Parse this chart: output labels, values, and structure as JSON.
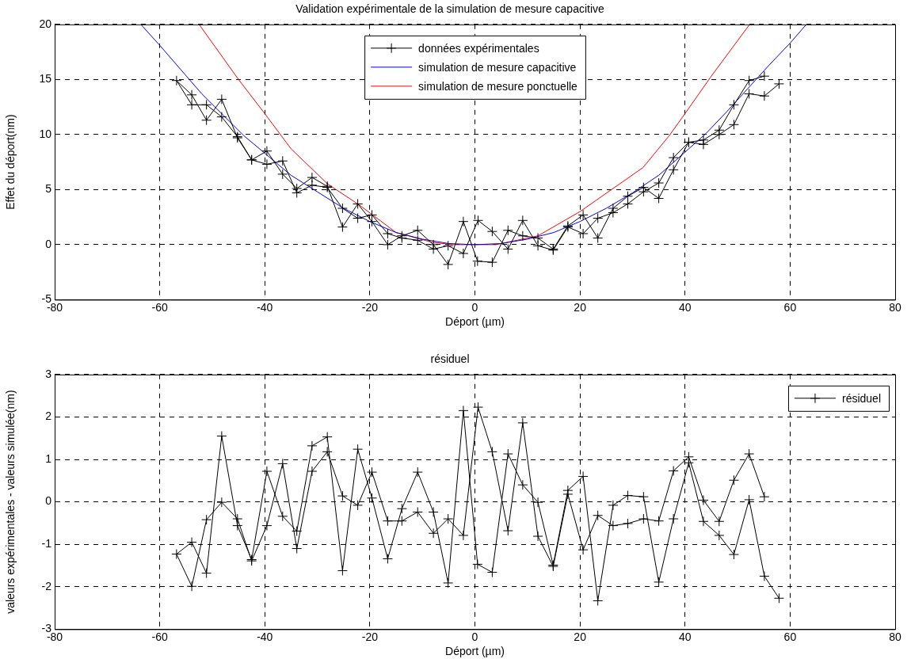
{
  "chart_data": [
    {
      "type": "line",
      "title": "Validation expérimentale de la simulation de mesure capacitive",
      "xlabel": "Déport (µm)",
      "ylabel": "Effet du déport(nm)",
      "xlim": [
        -80,
        80
      ],
      "xticks": [
        -80,
        -60,
        -40,
        -20,
        0,
        20,
        40,
        60,
        80
      ],
      "ylim": [
        -5,
        20
      ],
      "yticks": [
        -5,
        0,
        5,
        10,
        15,
        20
      ],
      "grid": true,
      "legend": "top",
      "marker": "cross",
      "line_style": "solid",
      "series": [
        {
          "name": "données expérimentales",
          "color": "#000000",
          "x": [
            55.1,
            52.2,
            49.3,
            46.5,
            43.5,
            40.7,
            37.8,
            35.0,
            32.1,
            29.1,
            26.3,
            23.4,
            20.6,
            17.7,
            14.9,
            12.0,
            9.1,
            6.3,
            3.3,
            0.6,
            -2.2,
            -5.1,
            -7.9,
            -10.9,
            -13.9,
            -16.6,
            -19.6,
            -22.3,
            -25.2,
            -28.1,
            -31.0,
            -33.9,
            -36.6,
            -39.6,
            -42.5,
            -45.2,
            -48.2,
            -51.1,
            -53.9,
            -56.8,
            -53.9,
            -51.1,
            -48.2,
            -45.2,
            -42.5,
            -39.6,
            -36.6,
            -33.9,
            -31.0,
            -28.1,
            -25.2,
            -22.3,
            -19.6,
            -16.6,
            -13.9,
            -10.9,
            -7.9,
            -5.1,
            -2.2,
            0.5,
            3.3,
            6.3,
            9.1,
            12.0,
            14.9,
            17.7,
            20.6,
            23.4,
            26.3,
            29.1,
            32.1,
            35.0,
            37.8,
            40.7,
            43.5,
            46.5,
            49.3,
            52.2,
            55.1,
            57.9
          ],
          "values": [
            15.3,
            14.9,
            12.7,
            10.4,
            9.5,
            9.3,
            7.9,
            5.6,
            4.8,
            3.7,
            2.9,
            2.4,
            1.0,
            1.6,
            -0.5,
            -0.1,
            2.2,
            -0.4,
            1.2,
            2.2,
            -0.8,
            -0.1,
            -0.4,
            0.4,
            0.6,
            1.0,
            2.7,
            2.4,
            3.3,
            5.2,
            5.4,
            4.7,
            7.6,
            7.3,
            7.7,
            9.8,
            11.6,
            12.7,
            12.7,
            14.9,
            13.6,
            11.3,
            13.2,
            9.7,
            7.7,
            8.5,
            6.4,
            5.1,
            6.1,
            5.3,
            1.6,
            3.7,
            2.1,
            0.0,
            0.8,
            1.3,
            0.0,
            -1.8,
            2.1,
            -1.5,
            -1.6,
            1.3,
            0.8,
            0.6,
            -0.4,
            1.7,
            2.7,
            0.6,
            3.3,
            4.4,
            5.2,
            4.2,
            6.8,
            9.3,
            9.1,
            10.0,
            10.9,
            13.7,
            13.5,
            14.6
          ]
        },
        {
          "name": "simulation de mesure capacitive",
          "color": "#0000ff",
          "marker": "none",
          "x": [
            -63.6,
            -60,
            -56,
            -52,
            -48,
            -44,
            -40,
            -35,
            -30,
            -25,
            -20,
            -15,
            -10,
            -5,
            0,
            5,
            10,
            15,
            20,
            25,
            30,
            35,
            40,
            44,
            48,
            52,
            56,
            60,
            63.1
          ],
          "values": [
            20,
            18.1,
            15.9,
            13.7,
            11.8,
            9.9,
            8.3,
            6.3,
            4.8,
            3.3,
            2.1,
            1.1,
            0.5,
            0.1,
            0,
            0.1,
            0.5,
            1.1,
            2.1,
            3.3,
            4.7,
            6.3,
            8.4,
            10.1,
            12.1,
            14.2,
            16.3,
            18.3,
            20
          ]
        },
        {
          "name": "simulation de mesure ponctuelle",
          "color": "#ff0000",
          "marker": "none",
          "x": [
            -52.5,
            -48,
            -45,
            -40,
            -35,
            -28,
            -22,
            -15,
            -8,
            -4,
            0,
            4,
            6,
            12,
            20,
            26,
            32,
            37,
            40,
            45,
            52.3
          ],
          "values": [
            20,
            17.0,
            15.0,
            11.9,
            8.7,
            5.5,
            3.6,
            1.1,
            0.2,
            0,
            0,
            0,
            0.2,
            0.8,
            3.0,
            5.0,
            7.0,
            9.9,
            11.9,
            15.3,
            20
          ]
        }
      ]
    },
    {
      "type": "line",
      "title": "résiduel",
      "xlabel": "Déport (µm)",
      "ylabel": "valeurs expérimentales - valeurs simulée(nm)",
      "xlim": [
        -80,
        80
      ],
      "xticks": [
        -80,
        -60,
        -40,
        -20,
        0,
        20,
        40,
        60,
        80
      ],
      "ylim": [
        -3,
        3
      ],
      "yticks": [
        -3,
        -2,
        -1,
        0,
        1,
        2,
        3
      ],
      "grid": true,
      "legend": "top right",
      "marker": "cross",
      "line_style": "solid",
      "series": [
        {
          "name": "résiduel",
          "color": "#000000",
          "x": [
            55.1,
            52.2,
            49.3,
            46.5,
            43.5,
            40.7,
            37.8,
            35.0,
            32.1,
            29.1,
            26.3,
            23.4,
            20.6,
            17.7,
            14.9,
            12.0,
            9.1,
            6.3,
            3.3,
            0.6,
            -2.2,
            -5.1,
            -7.9,
            -10.9,
            -13.9,
            -16.6,
            -19.6,
            -22.3,
            -25.2,
            -28.1,
            -31.0,
            -33.9,
            -36.6,
            -39.6,
            -42.5,
            -45.2,
            -48.2,
            -51.1,
            -53.9,
            -56.8,
            -53.9,
            -51.1,
            -48.2,
            -45.2,
            -42.5,
            -39.6,
            -36.6,
            -33.9,
            -31.0,
            -28.1,
            -25.2,
            -22.3,
            -19.6,
            -16.6,
            -13.9,
            -10.9,
            -7.9,
            -5.1,
            -2.2,
            0.5,
            3.3,
            6.3,
            9.1,
            12.0,
            14.9,
            17.7,
            20.6,
            23.4,
            26.3,
            29.1,
            32.1,
            35.0,
            37.8,
            40.7,
            43.5,
            46.5,
            49.3,
            52.2,
            55.1,
            57.9
          ],
          "values": [
            0.12,
            1.13,
            0.51,
            -0.46,
            0.04,
            1.06,
            0.73,
            -0.45,
            -0.4,
            -0.51,
            -0.56,
            -0.32,
            -1.13,
            0.18,
            -1.52,
            -0.81,
            1.86,
            -0.68,
            1.18,
            2.23,
            -0.79,
            -0.4,
            -0.74,
            -0.24,
            -0.45,
            -0.45,
            0.7,
            -0.08,
            0.14,
            1.18,
            0.72,
            -1.1,
            0.9,
            -0.56,
            -1.39,
            -0.4,
            -0.01,
            -0.42,
            -1.99,
            -1.23,
            -0.95,
            -1.68,
            1.55,
            -0.56,
            -1.36,
            0.72,
            -0.34,
            -0.69,
            1.32,
            1.53,
            -1.62,
            1.24,
            0.09,
            -1.34,
            -0.16,
            0.7,
            -0.24,
            -1.91,
            2.15,
            -1.47,
            -1.66,
            1.13,
            0.4,
            -0.01,
            -1.49,
            0.27,
            0.6,
            -2.33,
            -0.08,
            0.15,
            0.12,
            -1.89,
            -0.4,
            0.92,
            -0.46,
            -0.79,
            -1.24,
            0.05,
            -1.75,
            -2.27
          ]
        }
      ]
    }
  ]
}
